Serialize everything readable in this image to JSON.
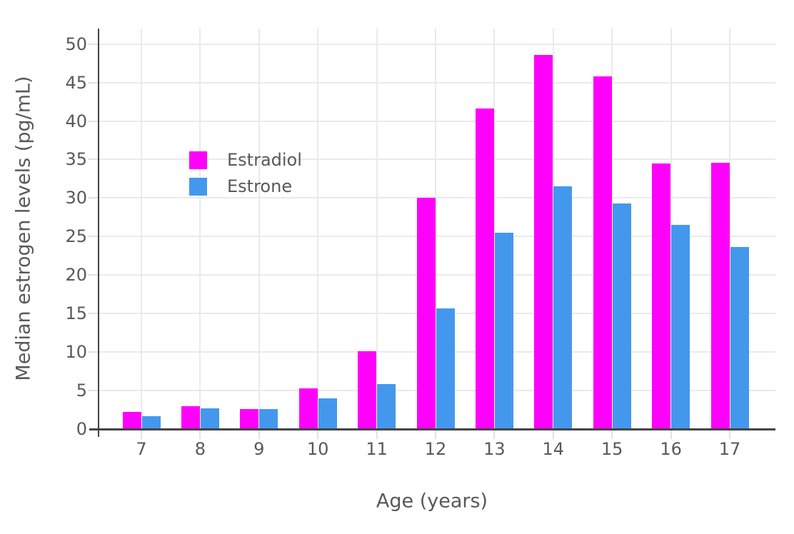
{
  "figure": {
    "background": "#ffffff"
  },
  "axes": {
    "y_title": "Median estrogen levels (pg/mL)",
    "x_title": "Age (years)",
    "y_tick_labels": [
      "0",
      "5",
      "10",
      "15",
      "20",
      "25",
      "30",
      "35",
      "40",
      "45",
      "50"
    ],
    "x_tick_labels": [
      "7",
      "8",
      "9",
      "10",
      "11",
      "12",
      "13",
      "14",
      "15",
      "16",
      "17"
    ]
  },
  "legend": {
    "items": [
      {
        "label": "Estradiol",
        "color": "#ff00fb"
      },
      {
        "label": "Estrone",
        "color": "#4398ee"
      }
    ]
  },
  "colors": {
    "estradiol_bar": "#ff00fb",
    "estrone_bar": "#4398ee",
    "axis_line": "#444444",
    "gridline": "#eaeaea",
    "tick_mark": "#e2e2e2",
    "text": "#595959"
  },
  "chart_data": {
    "type": "bar",
    "title": "",
    "xlabel": "Age (years)",
    "ylabel": "Median estrogen levels (pg/mL)",
    "categories": [
      7,
      8,
      9,
      10,
      11,
      12,
      13,
      14,
      15,
      16,
      17
    ],
    "series": [
      {
        "name": "Estradiol",
        "color": "#ff00fb",
        "values": [
          2.2,
          3.0,
          2.6,
          5.3,
          10.1,
          30.0,
          41.6,
          48.6,
          45.8,
          34.5,
          34.6
        ]
      },
      {
        "name": "Estrone",
        "color": "#4398ee",
        "values": [
          1.7,
          2.7,
          2.6,
          4.0,
          5.8,
          15.7,
          25.5,
          31.5,
          29.3,
          26.5,
          23.6
        ]
      }
    ],
    "ylim": [
      0,
      52
    ],
    "yticks": [
      0,
      5,
      10,
      15,
      20,
      25,
      30,
      35,
      40,
      45,
      50
    ],
    "grid": true,
    "legend_position": "inside-top-left",
    "bar_mode": "grouped"
  }
}
